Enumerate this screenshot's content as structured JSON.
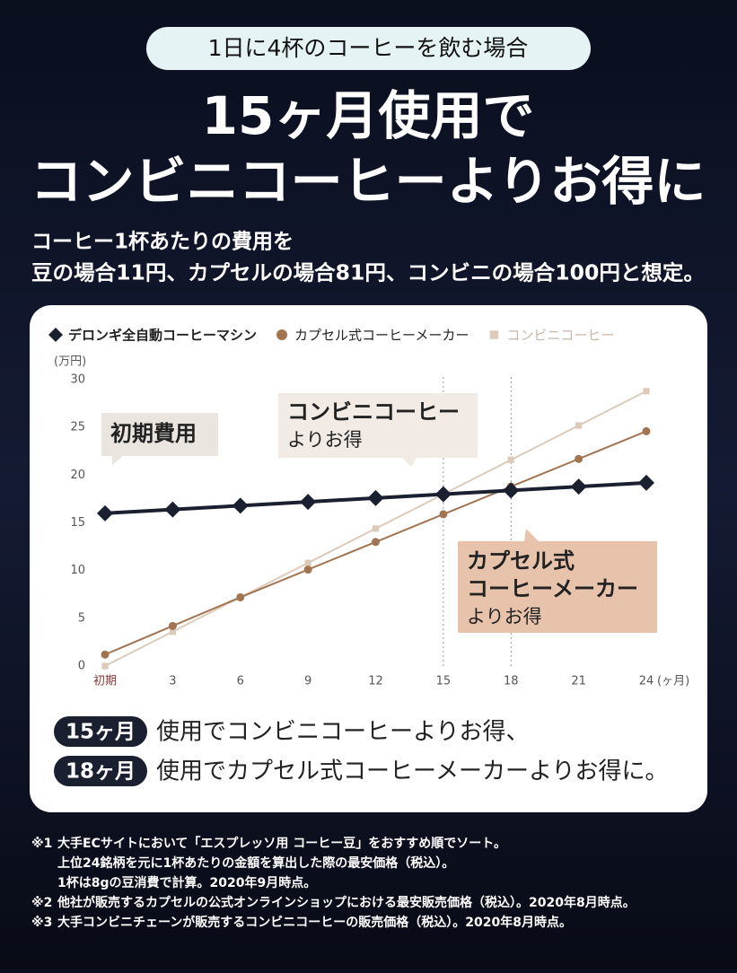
{
  "header": {
    "condition": "1日に4杯のコーヒーを飲む場合",
    "title_lines": [
      "15ヶ月使用で",
      "コンビニコーヒーよりお得に"
    ],
    "subtitle_lines": [
      "コーヒー1杯あたりの費用を",
      "豆の場合11円、カプセルの場合81円、コンビニの場合100円と想定。"
    ]
  },
  "chart_data": {
    "type": "line",
    "categories": [
      "初期",
      "3",
      "6",
      "9",
      "12",
      "15",
      "18",
      "21",
      "24"
    ],
    "x_unit": "(ヶ月)",
    "y_unit": "(万円)",
    "ylim": [
      0,
      30
    ],
    "yticks": [
      0,
      5,
      10,
      15,
      20,
      25,
      30
    ],
    "series": [
      {
        "name": "デロンギ全自動コーヒーマシン",
        "color": "#1b2030",
        "marker": "diamond",
        "values": [
          16.0,
          16.4,
          16.8,
          17.2,
          17.6,
          18.0,
          18.4,
          18.8,
          19.2
        ]
      },
      {
        "name": "カプセル式コーヒーメーカー",
        "color": "#a27552",
        "marker": "circle",
        "values": [
          1.2,
          4.2,
          7.2,
          10.1,
          13.0,
          15.9,
          18.8,
          21.7,
          24.6
        ]
      },
      {
        "name": "コンビニコーヒー",
        "color": "#dccbbb",
        "marker": "square",
        "values": [
          0,
          3.6,
          7.2,
          10.8,
          14.4,
          18.0,
          21.6,
          25.2,
          28.8
        ]
      }
    ],
    "reference_lines": [
      "15",
      "18"
    ],
    "annotations": [
      {
        "lines": [
          "初期費用"
        ]
      },
      {
        "lines": [
          "コンビニコーヒー",
          "よりお得"
        ]
      },
      {
        "lines": [
          "カプセル式",
          "コーヒーメーカー",
          "よりお得"
        ]
      }
    ]
  },
  "conclusions": [
    {
      "badge": "15ヶ月",
      "text": "使用でコンビニコーヒーよりお得、"
    },
    {
      "badge": "18ヶ月",
      "text": "使用でカプセル式コーヒーメーカーよりお得に。"
    }
  ],
  "footnotes": [
    {
      "mark": "※1",
      "lines": [
        "大手ECサイトにおいて「エスプレッソ用 コーヒー豆」をおすすめ順でソート。",
        "上位24銘柄を元に1杯あたりの金額を算出した際の最安価格（税込）。",
        "1杯は8gの豆消費で計算。2020年9月時点。"
      ]
    },
    {
      "mark": "※2",
      "lines": [
        "他社が販売するカプセルの公式オンラインショップにおける最安販売価格（税込）。2020年8月時点。"
      ]
    },
    {
      "mark": "※3",
      "lines": [
        "大手コンビニチェーンが販売するコンビニコーヒーの販売価格（税込）。2020年8月時点。"
      ]
    }
  ]
}
